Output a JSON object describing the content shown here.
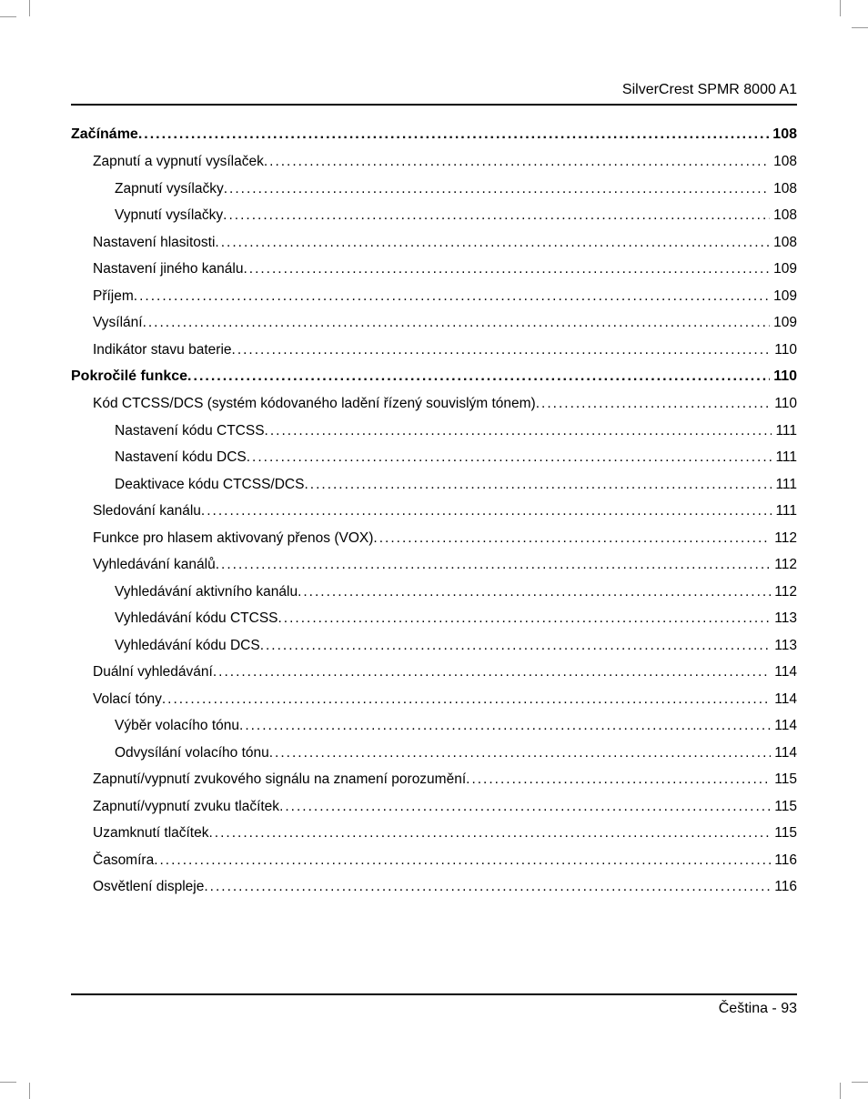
{
  "header": {
    "product": "SilverCrest SPMR 8000 A1"
  },
  "footer": {
    "lang": "Čeština",
    "sep": "  -  ",
    "page_num": "93"
  },
  "leader_char": ".",
  "toc": [
    {
      "level": 0,
      "label": "Začínáme ",
      "page": "108"
    },
    {
      "level": 1,
      "label": "Zapnutí a vypnutí vysílaček ",
      "page": "108"
    },
    {
      "level": 2,
      "label": "Zapnutí vysílačky ",
      "page": "108"
    },
    {
      "level": 2,
      "label": "Vypnutí vysílačky ",
      "page": "108"
    },
    {
      "level": 1,
      "label": "Nastavení hlasitosti ",
      "page": "108"
    },
    {
      "level": 1,
      "label": "Nastavení jiného kanálu ",
      "page": "109"
    },
    {
      "level": 1,
      "label": "Příjem ",
      "page": "109"
    },
    {
      "level": 1,
      "label": "Vysílání ",
      "page": "109"
    },
    {
      "level": 1,
      "label": "Indikátor stavu baterie ",
      "page": "110"
    },
    {
      "level": 0,
      "label": "Pokročilé funkce",
      "page": "110"
    },
    {
      "level": 1,
      "label": "Kód CTCSS/DCS (systém kódovaného ladění řízený souvislým tónem) ",
      "page": "110"
    },
    {
      "level": 2,
      "label": "Nastavení kódu CTCSS ",
      "page": "111"
    },
    {
      "level": 2,
      "label": "Nastavení kódu DCS ",
      "page": "111"
    },
    {
      "level": 2,
      "label": "Deaktivace kódu CTCSS/DCS ",
      "page": "111"
    },
    {
      "level": 1,
      "label": "Sledování kanálu ",
      "page": "111"
    },
    {
      "level": 1,
      "label": "Funkce pro hlasem aktivovaný přenos (VOX) ",
      "page": "112"
    },
    {
      "level": 1,
      "label": "Vyhledávání kanálů",
      "page": "112"
    },
    {
      "level": 2,
      "label": "Vyhledávání aktivního kanálu",
      "page": "112"
    },
    {
      "level": 2,
      "label": "Vyhledávání kódu CTCSS",
      "page": "113"
    },
    {
      "level": 2,
      "label": "Vyhledávání kódu DCS",
      "page": "113"
    },
    {
      "level": 1,
      "label": "Duální vyhledávání",
      "page": "114"
    },
    {
      "level": 1,
      "label": "Volací tóny ",
      "page": "114"
    },
    {
      "level": 2,
      "label": "Výběr volacího tónu ",
      "page": "114"
    },
    {
      "level": 2,
      "label": "Odvysílání volacího tónu ",
      "page": "114"
    },
    {
      "level": 1,
      "label": "Zapnutí/vypnutí zvukového signálu na znamení porozumění ",
      "page": "115"
    },
    {
      "level": 1,
      "label": "Zapnutí/vypnutí zvuku tlačítek ",
      "page": "115"
    },
    {
      "level": 1,
      "label": "Uzamknutí tlačítek ",
      "page": "115"
    },
    {
      "level": 1,
      "label": "Časomíra",
      "page": "116"
    },
    {
      "level": 1,
      "label": "Osvětlení displeje ",
      "page": "116"
    }
  ]
}
